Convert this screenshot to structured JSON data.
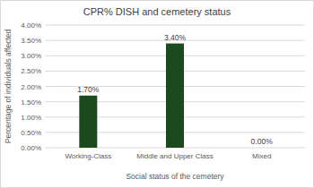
{
  "chart_data": {
    "type": "bar",
    "title": "CPR% DISH and cemetery status",
    "x_label": "Social status of the cemetery",
    "y_label": "Percentage of individuals affected",
    "categories": [
      "Working-Class",
      "Middle and Upper Class",
      "Mixed"
    ],
    "values": [
      1.7,
      3.4,
      0
    ],
    "value_labels": [
      "1.70%",
      "3.40%",
      "0.00%"
    ],
    "color": "#1b4a1f",
    "ylim": [
      0,
      4
    ],
    "yticks": [
      {
        "value": 0,
        "label": "0.00%"
      },
      {
        "value": 0.5,
        "label": "0.50%"
      },
      {
        "value": 1,
        "label": "1.00%"
      },
      {
        "value": 1.5,
        "label": "1.50%"
      },
      {
        "value": 2,
        "label": "2.00%"
      },
      {
        "value": 2.5,
        "label": "2.50%"
      },
      {
        "value": 3,
        "label": "3.00%"
      },
      {
        "value": 3.5,
        "label": "3.50%"
      },
      {
        "value": 4,
        "label": "4.00%"
      }
    ],
    "grid": true,
    "data_labels": true
  }
}
